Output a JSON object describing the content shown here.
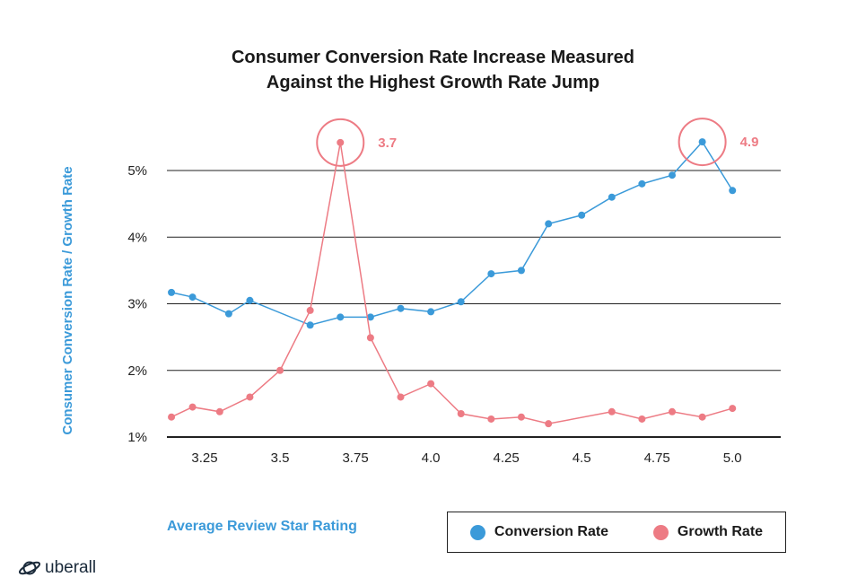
{
  "chart_data": {
    "type": "line",
    "title_line1": "Consumer Conversion Rate Increase Measured",
    "title_line2": "Against the Highest Growth Rate Jump",
    "xlabel": "Average Review Star Rating",
    "ylabel": "Consumer Conversion Rate / Growth Rate",
    "xlim": [
      3.125,
      5.16
    ],
    "ylim": [
      1.0,
      5.0
    ],
    "x_ticks": [
      3.25,
      3.5,
      3.75,
      4.0,
      4.25,
      4.5,
      4.75,
      5.0
    ],
    "x_tick_labels": [
      "3.25",
      "3.5",
      "3.75",
      "4.0",
      "4.25",
      "4.5",
      "4.75",
      "5.0"
    ],
    "y_ticks": [
      1,
      2,
      3,
      4,
      5
    ],
    "y_tick_labels": [
      "1%",
      "2%",
      "3%",
      "4%",
      "5%"
    ],
    "series": [
      {
        "name": "Conversion Rate",
        "color": "#3b9ad9",
        "x": [
          3.14,
          3.21,
          3.33,
          3.4,
          3.6,
          3.7,
          3.8,
          3.9,
          4.0,
          4.1,
          4.2,
          4.3,
          4.39,
          4.5,
          4.6,
          4.7,
          4.8,
          4.9,
          5.0
        ],
        "values": [
          3.17,
          3.1,
          2.85,
          3.05,
          2.68,
          2.8,
          2.8,
          2.93,
          2.88,
          3.03,
          3.45,
          3.5,
          4.2,
          4.33,
          4.6,
          4.8,
          4.93,
          5.43,
          4.7
        ]
      },
      {
        "name": "Growth Rate",
        "color": "#ed7b84",
        "x": [
          3.14,
          3.21,
          3.3,
          3.4,
          3.5,
          3.6,
          3.7,
          3.8,
          3.9,
          4.0,
          4.1,
          4.2,
          4.3,
          4.39,
          4.6,
          4.7,
          4.8,
          4.9,
          5.0
        ],
        "values": [
          1.3,
          1.45,
          1.38,
          1.6,
          2.0,
          2.9,
          5.42,
          2.49,
          1.6,
          1.8,
          1.35,
          1.27,
          1.3,
          1.2,
          1.38,
          1.27,
          1.38,
          1.3,
          1.43
        ]
      }
    ],
    "annotations": [
      {
        "series": "Growth Rate",
        "point_index": 6,
        "label": "3.7",
        "color": "#ed7b84"
      },
      {
        "series": "Conversion Rate",
        "point_index": 17,
        "label": "4.9",
        "color": "#ed7b84"
      }
    ],
    "legend": {
      "placement": "bottom-right"
    }
  },
  "brand": {
    "name": "uberall",
    "icon": "planet-icon"
  }
}
